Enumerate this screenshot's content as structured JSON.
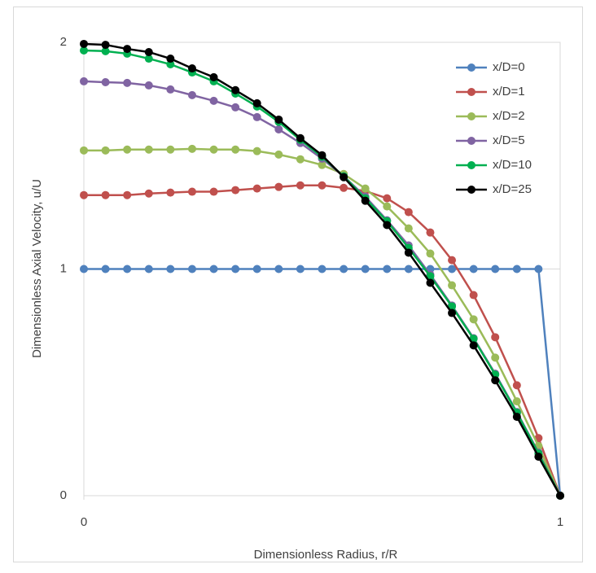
{
  "chart_data": {
    "type": "line",
    "xlabel": "Dimensionless Radius, r/R",
    "ylabel": "Dimensionless Axial Velocity, u/U",
    "x": [
      0,
      0.0455,
      0.0909,
      0.1364,
      0.1818,
      0.2273,
      0.2727,
      0.3182,
      0.3636,
      0.4091,
      0.4545,
      0.5,
      0.5455,
      0.5909,
      0.6364,
      0.6818,
      0.7273,
      0.7727,
      0.8182,
      0.8636,
      0.9091,
      0.9545,
      1
    ],
    "xlim": [
      0,
      1
    ],
    "xticks": [
      0,
      1
    ],
    "ylim": [
      0,
      2
    ],
    "yticks": [
      0,
      1,
      2
    ],
    "grid": true,
    "legend": "right",
    "series": [
      {
        "name": "x/D=0",
        "color": "#4f81bd",
        "values": [
          1,
          1,
          1,
          1,
          1,
          1,
          1,
          1,
          1,
          1,
          1,
          1,
          1,
          1,
          1,
          1,
          1,
          1,
          1,
          1,
          1,
          1,
          0
        ]
      },
      {
        "name": "x/D=1",
        "color": "#c0504d",
        "values": [
          1.326,
          1.326,
          1.326,
          1.333,
          1.337,
          1.341,
          1.341,
          1.348,
          1.355,
          1.362,
          1.369,
          1.369,
          1.358,
          1.344,
          1.312,
          1.251,
          1.161,
          1.039,
          0.885,
          0.699,
          0.487,
          0.254,
          0
        ]
      },
      {
        "name": "x/D=2",
        "color": "#9bbb59",
        "values": [
          1.523,
          1.523,
          1.527,
          1.527,
          1.527,
          1.53,
          1.527,
          1.527,
          1.52,
          1.505,
          1.484,
          1.459,
          1.419,
          1.355,
          1.276,
          1.179,
          1.068,
          0.928,
          0.778,
          0.609,
          0.416,
          0.219,
          0
        ]
      },
      {
        "name": "x/D=5",
        "color": "#8064a2",
        "values": [
          1.828,
          1.824,
          1.821,
          1.81,
          1.792,
          1.767,
          1.742,
          1.713,
          1.67,
          1.616,
          1.556,
          1.487,
          1.409,
          1.319,
          1.215,
          1.104,
          0.975,
          0.839,
          0.695,
          0.538,
          0.369,
          0.19,
          0
        ]
      },
      {
        "name": "x/D=10",
        "color": "#00b050",
        "values": [
          1.964,
          1.961,
          1.95,
          1.928,
          1.903,
          1.867,
          1.828,
          1.774,
          1.717,
          1.649,
          1.57,
          1.495,
          1.409,
          1.312,
          1.211,
          1.093,
          0.968,
          0.835,
          0.692,
          0.534,
          0.366,
          0.186,
          0
        ]
      },
      {
        "name": "x/D=25",
        "color": "#000000",
        "values": [
          1.993,
          1.989,
          1.971,
          1.957,
          1.928,
          1.885,
          1.846,
          1.789,
          1.731,
          1.659,
          1.577,
          1.502,
          1.405,
          1.301,
          1.194,
          1.072,
          0.939,
          0.806,
          0.663,
          0.509,
          0.348,
          0.172,
          0
        ]
      }
    ]
  }
}
